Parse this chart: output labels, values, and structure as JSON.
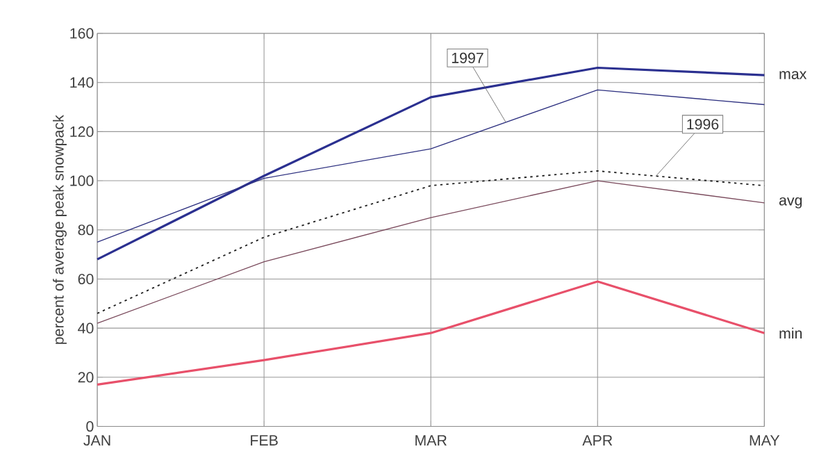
{
  "chart_data": {
    "type": "line",
    "ylabel": "percent of average peak snowpack",
    "categories": [
      "JAN",
      "FEB",
      "MAR",
      "APR",
      "MAY"
    ],
    "series": [
      {
        "name": "max",
        "color": "#2b3090",
        "values": [
          68,
          102,
          134,
          146,
          143
        ]
      },
      {
        "name": "1997",
        "color": "#2e3180",
        "values": [
          75,
          101,
          113,
          137,
          131
        ]
      },
      {
        "name": "1996",
        "color": "#222222",
        "line_style": "dotted",
        "values": [
          46,
          77,
          98,
          104,
          98
        ]
      },
      {
        "name": "avg",
        "color": "#7a4a5c",
        "values": [
          42,
          67,
          85,
          100,
          91
        ]
      },
      {
        "name": "min",
        "color": "#e8506a",
        "values": [
          17,
          27,
          38,
          59,
          38
        ]
      }
    ],
    "ylim": [
      0,
      160
    ],
    "yticks": [
      0,
      20,
      40,
      60,
      80,
      100,
      120,
      140,
      160
    ],
    "grid": true,
    "legend": false
  }
}
